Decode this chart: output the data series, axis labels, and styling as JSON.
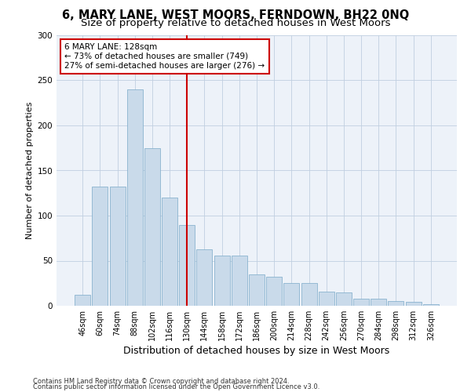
{
  "title": "6, MARY LANE, WEST MOORS, FERNDOWN, BH22 0NQ",
  "subtitle": "Size of property relative to detached houses in West Moors",
  "xlabel": "Distribution of detached houses by size in West Moors",
  "ylabel": "Number of detached properties",
  "categories": [
    "46sqm",
    "60sqm",
    "74sqm",
    "88sqm",
    "102sqm",
    "116sqm",
    "130sqm",
    "144sqm",
    "158sqm",
    "172sqm",
    "186sqm",
    "200sqm",
    "214sqm",
    "228sqm",
    "242sqm",
    "256sqm",
    "270sqm",
    "284sqm",
    "298sqm",
    "312sqm",
    "326sqm"
  ],
  "values": [
    12,
    132,
    132,
    240,
    175,
    120,
    90,
    63,
    56,
    56,
    35,
    32,
    25,
    25,
    16,
    15,
    8,
    8,
    5,
    4,
    2
  ],
  "bar_color": "#c9daea",
  "bar_edge_color": "#7aaac8",
  "grid_color": "#c0cfe0",
  "background_color": "#edf2f9",
  "vline_x": 6,
  "vline_color": "#cc0000",
  "annotation_text": "6 MARY LANE: 128sqm\n← 73% of detached houses are smaller (749)\n27% of semi-detached houses are larger (276) →",
  "annotation_box_color": "#ffffff",
  "annotation_box_edge": "#cc0000",
  "ylim": [
    0,
    300
  ],
  "yticks": [
    0,
    50,
    100,
    150,
    200,
    250,
    300
  ],
  "footer1": "Contains HM Land Registry data © Crown copyright and database right 2024.",
  "footer2": "Contains public sector information licensed under the Open Government Licence v3.0.",
  "title_fontsize": 10.5,
  "subtitle_fontsize": 9.5,
  "xlabel_fontsize": 9,
  "ylabel_fontsize": 8,
  "tick_fontsize": 7,
  "annotation_fontsize": 7.5,
  "footer_fontsize": 6
}
